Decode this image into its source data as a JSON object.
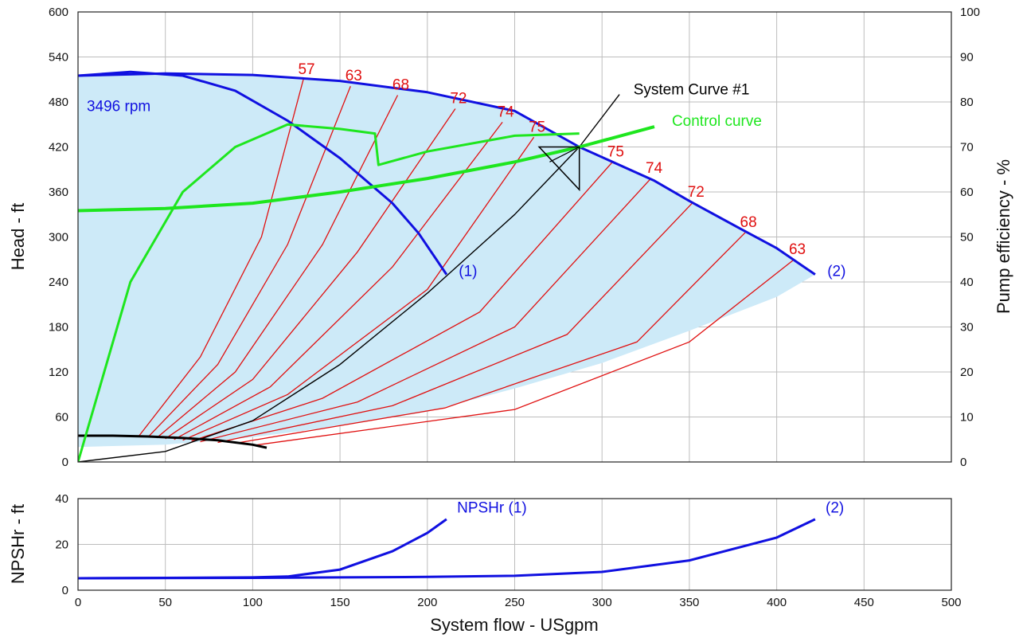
{
  "chart_data": [
    {
      "type": "line",
      "xlabel": "System flow - USgpm",
      "ylabel": "Head - ft",
      "y2label": "Pump efficiency - %",
      "xlim": [
        0,
        500
      ],
      "ylim": [
        0,
        600
      ],
      "y2lim": [
        0,
        100
      ],
      "x_ticks": [
        0,
        50,
        100,
        150,
        200,
        250,
        300,
        350,
        400,
        450,
        500
      ],
      "y_ticks": [
        0,
        60,
        120,
        180,
        240,
        300,
        360,
        420,
        480,
        540,
        600
      ],
      "y2_ticks": [
        0,
        10,
        20,
        30,
        40,
        50,
        60,
        70,
        80,
        90,
        100
      ],
      "grid": true,
      "colors": {
        "pump": "#1010e0",
        "efficiency": "#e01010",
        "green": "#1ee61e",
        "fill": "#cdeaf8",
        "system": "#000000"
      },
      "labels": {
        "speed": "3496 rpm",
        "system_curve": "System Curve #1",
        "control_curve": "Control curve",
        "pump1": "(1)",
        "pump2": "(2)"
      },
      "region_lower_boundary": [
        [
          422,
          250
        ],
        [
          400,
          220
        ],
        [
          350,
          175
        ],
        [
          300,
          132
        ],
        [
          250,
          98
        ],
        [
          200,
          67
        ],
        [
          150,
          48
        ],
        [
          100,
          33
        ],
        [
          50,
          23
        ],
        [
          0,
          20
        ]
      ],
      "series": [
        {
          "name": "Pump curve (2)",
          "role": "head",
          "values": [
            [
              0,
              515
            ],
            [
              50,
              518
            ],
            [
              100,
              516
            ],
            [
              150,
              508
            ],
            [
              200,
              493
            ],
            [
              250,
              468
            ],
            [
              287,
              420
            ],
            [
              330,
              375
            ],
            [
              350,
              348
            ],
            [
              380,
              310
            ],
            [
              400,
              285
            ],
            [
              422,
              250
            ]
          ]
        },
        {
          "name": "Pump curve (1)",
          "role": "head",
          "values": [
            [
              0,
              515
            ],
            [
              30,
              520
            ],
            [
              60,
              515
            ],
            [
              90,
              495
            ],
            [
              120,
              455
            ],
            [
              150,
              405
            ],
            [
              180,
              345
            ],
            [
              195,
              305
            ],
            [
              211,
              250
            ]
          ]
        },
        {
          "name": "System Curve #1",
          "role": "system",
          "values": [
            [
              0,
              0
            ],
            [
              50,
              14
            ],
            [
              100,
              55
            ],
            [
              150,
              130
            ],
            [
              200,
              225
            ],
            [
              250,
              330
            ],
            [
              287,
              420
            ],
            [
              310,
              490
            ],
            [
              323,
              490
            ],
            [
              330,
              488
            ],
            [
              331,
              489
            ],
            [
              311,
              490
            ]
          ]
        },
        {
          "name": "Control curve",
          "role": "control",
          "values": [
            [
              0,
              335
            ],
            [
              50,
              338
            ],
            [
              100,
              345
            ],
            [
              150,
              360
            ],
            [
              200,
              378
            ],
            [
              250,
              400
            ],
            [
              287,
              420
            ],
            [
              330,
              447
            ]
          ]
        },
        {
          "name": "Efficiency (1)",
          "role": "efficiency",
          "values": [
            [
              0,
              0
            ],
            [
              30,
              40
            ],
            [
              60,
              60
            ],
            [
              90,
              70
            ],
            [
              120,
              75
            ],
            [
              150,
              74
            ],
            [
              170,
              73
            ],
            [
              172,
              66
            ],
            [
              200,
              69
            ],
            [
              250,
              72.5
            ],
            [
              287,
              73
            ]
          ]
        }
      ],
      "efficiency_lines": [
        {
          "label": "57",
          "points": [
            [
              35,
              35
            ],
            [
              70,
              140
            ],
            [
              105,
              300
            ],
            [
              129,
              510
            ]
          ]
        },
        {
          "label": "63",
          "points": [
            [
              40,
              33
            ],
            [
              80,
              130
            ],
            [
              120,
              290
            ],
            [
              156,
              501
            ]
          ]
        },
        {
          "label": "68",
          "points": [
            [
              45,
              32
            ],
            [
              90,
              120
            ],
            [
              140,
              290
            ],
            [
              183,
              489
            ]
          ]
        },
        {
          "label": "72",
          "points": [
            [
              50,
              31
            ],
            [
              100,
              110
            ],
            [
              160,
              280
            ],
            [
              216,
              471
            ]
          ]
        },
        {
          "label": "74",
          "points": [
            [
              55,
              30
            ],
            [
              110,
              100
            ],
            [
              180,
              260
            ],
            [
              243,
              453
            ]
          ]
        },
        {
          "label": "75",
          "points": [
            [
              60,
              29
            ],
            [
              120,
              90
            ],
            [
              200,
              230
            ],
            [
              261,
              433
            ]
          ]
        },
        {
          "label": "75",
          "points": [
            [
              65,
              28
            ],
            [
              140,
              85
            ],
            [
              230,
              200
            ],
            [
              306,
              400
            ]
          ]
        },
        {
          "label": "74",
          "points": [
            [
              70,
              27
            ],
            [
              160,
              80
            ],
            [
              250,
              180
            ],
            [
              328,
              378
            ]
          ]
        },
        {
          "label": "72",
          "points": [
            [
              80,
              26
            ],
            [
              180,
              75
            ],
            [
              280,
              170
            ],
            [
              352,
              346
            ]
          ]
        },
        {
          "label": "68",
          "points": [
            [
              90,
              25
            ],
            [
              210,
              72
            ],
            [
              320,
              160
            ],
            [
              382,
              306
            ]
          ]
        },
        {
          "label": "63",
          "points": [
            [
              100,
              22
            ],
            [
              250,
              70
            ],
            [
              350,
              160
            ],
            [
              410,
              270
            ]
          ]
        }
      ],
      "npsha_curve": [
        [
          0,
          35
        ],
        [
          20,
          35
        ],
        [
          40,
          34
        ],
        [
          60,
          32
        ],
        [
          80,
          29
        ],
        [
          100,
          23
        ],
        [
          108,
          19
        ]
      ]
    },
    {
      "type": "line",
      "xlabel": "System flow - USgpm",
      "ylabel": "NPSHr - ft",
      "xlim": [
        0,
        500
      ],
      "ylim": [
        0,
        40
      ],
      "x_ticks": [
        0,
        50,
        100,
        150,
        200,
        250,
        300,
        350,
        400,
        450,
        500
      ],
      "y_ticks": [
        0,
        20,
        40
      ],
      "grid": true,
      "labels": {
        "npsh1": "NPSHr (1)",
        "npsh2": "(2)"
      },
      "series": [
        {
          "name": "NPSHr (1)",
          "values": [
            [
              0,
              5.2
            ],
            [
              50,
              5.4
            ],
            [
              100,
              5.6
            ],
            [
              120,
              6
            ],
            [
              150,
              9
            ],
            [
              180,
              17
            ],
            [
              200,
              25
            ],
            [
              211,
              31
            ]
          ]
        },
        {
          "name": "NPSHr (2)",
          "values": [
            [
              0,
              5.2
            ],
            [
              100,
              5.4
            ],
            [
              200,
              5.8
            ],
            [
              250,
              6.3
            ],
            [
              300,
              8
            ],
            [
              350,
              13
            ],
            [
              400,
              23
            ],
            [
              422,
              31
            ]
          ]
        }
      ]
    }
  ]
}
